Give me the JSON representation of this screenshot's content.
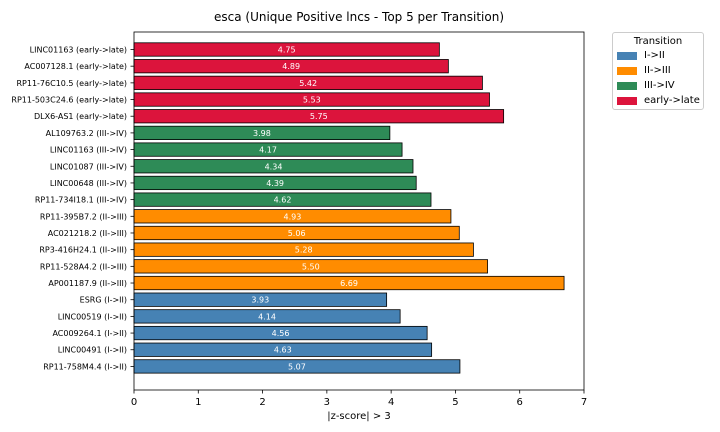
{
  "chart_data": {
    "type": "bar",
    "orientation": "horizontal",
    "title": "esca (Unique Positive lncs - Top 5 per Transition)",
    "xlabel": "|z-score| > 3",
    "ylabel": "",
    "xlim": [
      0,
      7
    ],
    "xticks": [
      "0",
      "1",
      "2",
      "3",
      "4",
      "5",
      "6",
      "7"
    ],
    "grid": false,
    "legend_placement": "outside top-right",
    "legend_title": "Transition",
    "series": [
      {
        "name": "I->II",
        "color": "#4682b4"
      },
      {
        "name": "II->III",
        "color": "#ff8c00"
      },
      {
        "name": "III->IV",
        "color": "#2e8b57"
      },
      {
        "name": "early->late",
        "color": "#dc143c"
      }
    ],
    "bars": [
      {
        "label": "LINC01163 (early->late)",
        "value": 4.75,
        "value_label": "4.75",
        "series": "early->late"
      },
      {
        "label": "AC007128.1 (early->late)",
        "value": 4.89,
        "value_label": "4.89",
        "series": "early->late"
      },
      {
        "label": "RP11-76C10.5 (early->late)",
        "value": 5.42,
        "value_label": "5.42",
        "series": "early->late"
      },
      {
        "label": "RP11-503C24.6 (early->late)",
        "value": 5.53,
        "value_label": "5.53",
        "series": "early->late"
      },
      {
        "label": "DLX6-AS1 (early->late)",
        "value": 5.75,
        "value_label": "5.75",
        "series": "early->late"
      },
      {
        "label": "AL109763.2 (III->IV)",
        "value": 3.98,
        "value_label": "3.98",
        "series": "III->IV"
      },
      {
        "label": "LINC01163 (III->IV)",
        "value": 4.17,
        "value_label": "4.17",
        "series": "III->IV"
      },
      {
        "label": "LINC01087 (III->IV)",
        "value": 4.34,
        "value_label": "4.34",
        "series": "III->IV"
      },
      {
        "label": "LINC00648 (III->IV)",
        "value": 4.39,
        "value_label": "4.39",
        "series": "III->IV"
      },
      {
        "label": "RP11-734I18.1 (III->IV)",
        "value": 4.62,
        "value_label": "4.62",
        "series": "III->IV"
      },
      {
        "label": "RP11-395B7.2 (II->III)",
        "value": 4.93,
        "value_label": "4.93",
        "series": "II->III"
      },
      {
        "label": "AC021218.2 (II->III)",
        "value": 5.06,
        "value_label": "5.06",
        "series": "II->III"
      },
      {
        "label": "RP3-416H24.1 (II->III)",
        "value": 5.28,
        "value_label": "5.28",
        "series": "II->III"
      },
      {
        "label": "RP11-528A4.2 (II->III)",
        "value": 5.5,
        "value_label": "5.50",
        "series": "II->III"
      },
      {
        "label": "AP001187.9 (II->III)",
        "value": 6.69,
        "value_label": "6.69",
        "series": "II->III"
      },
      {
        "label": "ESRG (I->II)",
        "value": 3.93,
        "value_label": "3.93",
        "series": "I->II"
      },
      {
        "label": "LINC00519 (I->II)",
        "value": 4.14,
        "value_label": "4.14",
        "series": "I->II"
      },
      {
        "label": "AC009264.1 (I->II)",
        "value": 4.56,
        "value_label": "4.56",
        "series": "I->II"
      },
      {
        "label": "LINC00491 (I->II)",
        "value": 4.63,
        "value_label": "4.63",
        "series": "I->II"
      },
      {
        "label": "RP11-758M4.4 (I->II)",
        "value": 5.07,
        "value_label": "5.07",
        "series": "I->II"
      }
    ]
  }
}
